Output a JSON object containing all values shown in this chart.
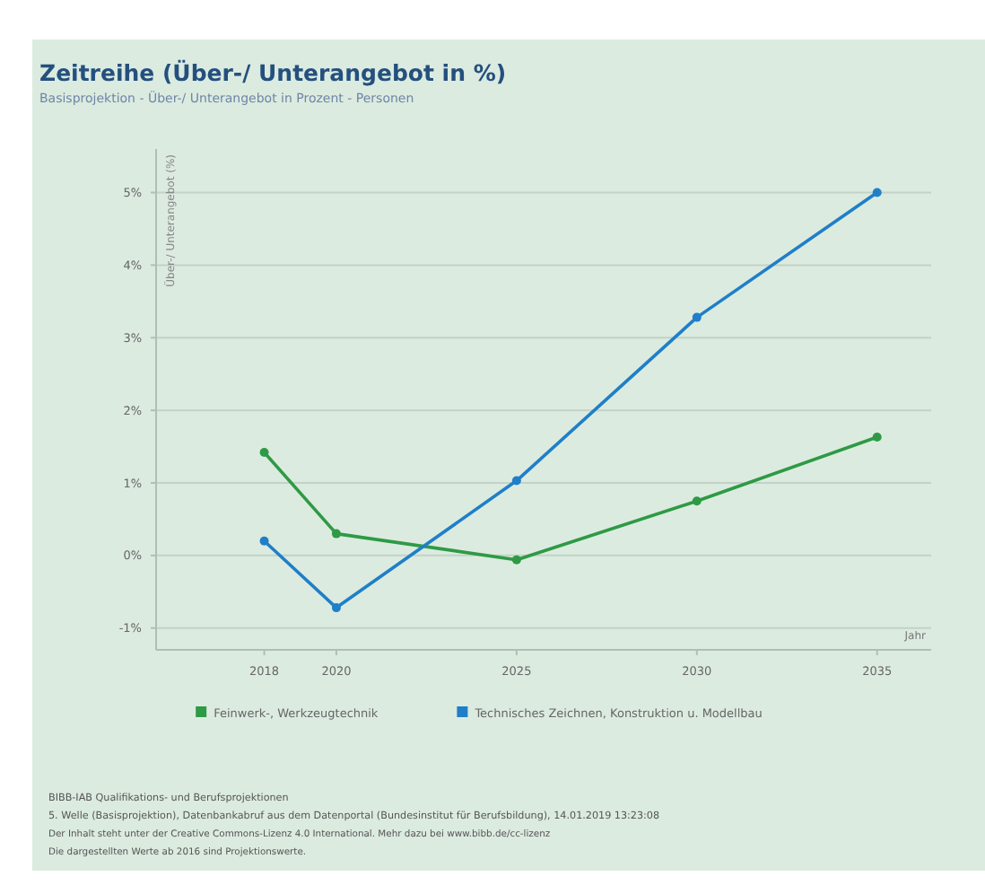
{
  "chart_data": {
    "type": "line",
    "title": "Zeitreihe (Über-/ Unterangebot in %)",
    "subtitle": "Basisprojektion - Über-/ Unterangebot in Prozent - Personen",
    "xlabel": "Jahr",
    "ylabel": "Über-/ Unterangebot (%)",
    "x": [
      2018,
      2020,
      2025,
      2030,
      2035
    ],
    "series": [
      {
        "name": "Feinwerk-, Werkzeugtechnik",
        "color": "#2e9a45",
        "values": [
          1.42,
          0.3,
          -0.06,
          0.75,
          1.63
        ]
      },
      {
        "name": "Technisches Zeichnen, Konstruktion u. Modellbau",
        "color": "#1f7fc8",
        "values": [
          0.2,
          -0.72,
          1.03,
          3.28,
          5.0
        ]
      }
    ],
    "xlim": [
      2015,
      2036.5
    ],
    "xticks": [
      2018,
      2020,
      2025,
      2030,
      2035
    ],
    "ylim": [
      -1.3,
      5.6
    ],
    "yticks": [
      {
        "value": -1,
        "label": "-1%"
      },
      {
        "value": 0,
        "label": "0%"
      },
      {
        "value": 1,
        "label": "1%"
      },
      {
        "value": 2,
        "label": "2%"
      },
      {
        "value": 3,
        "label": "3%"
      },
      {
        "value": 4,
        "label": "4%"
      },
      {
        "value": 5,
        "label": "5%"
      }
    ],
    "grid": "y",
    "legend": "bottom",
    "marker": "circle",
    "line_style": "solid",
    "annotations": [
      "BIBB-IAB Qualifikations- und Berufsprojektionen",
      "5. Welle (Basisprojektion), Datenbankabruf aus dem Datenportal (Bundesinstitut für Berufsbildung), 14.01.2019 13:23:08",
      "Der Inhalt steht unter der Creative Commons-Lizenz 4.0 International. Mehr dazu bei www.bibb.de/cc-lizenz",
      "Die dargestellten Werte ab 2016 sind Projektionswerte."
    ]
  }
}
